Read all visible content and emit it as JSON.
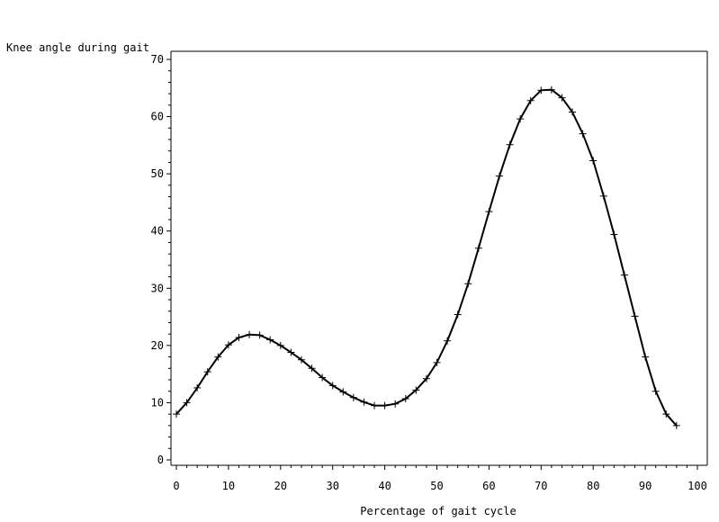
{
  "chart_data": {
    "type": "line",
    "ylabel": "Knee angle during gait",
    "xlabel": "Percentage of gait cycle",
    "xlim": [
      0,
      100
    ],
    "ylim": [
      0,
      70
    ],
    "x_ticks": [
      "0",
      "10",
      "20",
      "30",
      "40",
      "50",
      "60",
      "70",
      "80",
      "90",
      "100"
    ],
    "y_ticks": [
      "0",
      "10",
      "20",
      "30",
      "40",
      "50",
      "60",
      "70"
    ],
    "grid": false,
    "marker": "plus",
    "line_color": "#000000",
    "x": [
      0,
      2,
      4,
      6,
      8,
      10,
      12,
      14,
      16,
      18,
      20,
      22,
      24,
      26,
      28,
      30,
      32,
      34,
      36,
      38,
      40,
      42,
      44,
      46,
      48,
      50,
      52,
      54,
      56,
      58,
      60,
      62,
      64,
      66,
      68,
      70,
      72,
      74,
      76,
      78,
      80,
      82,
      84,
      86,
      88,
      90,
      92,
      94,
      96
    ],
    "values": [
      8.0,
      10.0,
      12.6,
      15.4,
      18.0,
      20.1,
      21.4,
      21.9,
      21.8,
      21.0,
      20.0,
      18.8,
      17.5,
      16.0,
      14.4,
      13.0,
      11.9,
      10.9,
      10.1,
      9.5,
      9.5,
      9.8,
      10.7,
      12.2,
      14.2,
      17.0,
      20.8,
      25.4,
      30.8,
      37.0,
      43.4,
      49.6,
      55.1,
      59.6,
      62.8,
      64.6,
      64.7,
      63.3,
      60.8,
      57.0,
      52.3,
      46.1,
      39.4,
      32.3,
      25.1,
      18.0,
      12.0,
      8.0,
      6.0
    ]
  }
}
